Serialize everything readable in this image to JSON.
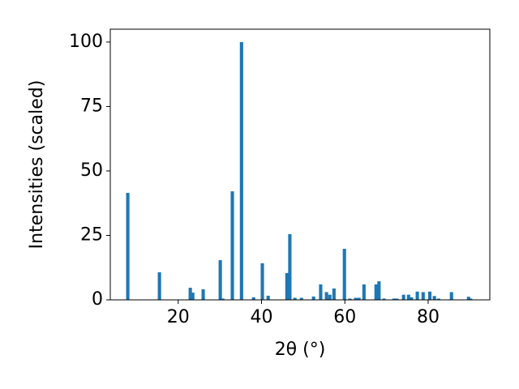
{
  "chart_data": {
    "type": "bar",
    "xlabel": "2θ (°)",
    "ylabel": "Intensities (scaled)",
    "x": [
      7.9,
      15.5,
      22.9,
      23.5,
      26.0,
      30.1,
      30.7,
      33.0,
      35.2,
      38.1,
      40.2,
      41.6,
      46.1,
      46.8,
      48.0,
      49.6,
      52.5,
      54.2,
      55.6,
      56.4,
      57.4,
      59.9,
      61.2,
      62.6,
      63.4,
      64.6,
      67.5,
      68.2,
      69.4,
      71.8,
      72.5,
      74.1,
      75.3,
      76.0,
      77.4,
      78.8,
      80.4,
      81.5,
      82.5,
      85.6,
      89.7,
      90.2
    ],
    "values": [
      41.5,
      10.7,
      4.7,
      2.8,
      4.1,
      15.4,
      0.5,
      42.1,
      100,
      1,
      14.2,
      1.6,
      10.4,
      25.5,
      0.8,
      0.8,
      1.3,
      6,
      3,
      2,
      4.4,
      19.8,
      0.5,
      0.8,
      0.8,
      6,
      6,
      7.2,
      0.5,
      0.5,
      0.5,
      2,
      2,
      1,
      3.2,
      3,
      3.2,
      1.5,
      0.5,
      3,
      1.2,
      0.5
    ],
    "bar_width": 0.8,
    "color": "#1f77b4",
    "xlim": [
      3.7,
      94.8
    ],
    "xticks": [
      20,
      40,
      60,
      80
    ],
    "ylim": [
      0,
      105
    ],
    "yticks": [
      0,
      25,
      50,
      75,
      100
    ]
  }
}
